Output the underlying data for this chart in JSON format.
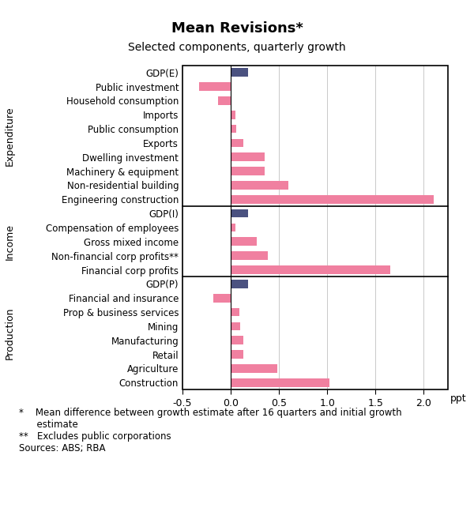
{
  "title": "Mean Revisions*",
  "subtitle": "Selected components, quarterly growth",
  "xlabel": "ppt",
  "xlim": [
    -0.5,
    2.25
  ],
  "xticks": [
    -0.5,
    0.0,
    0.5,
    1.0,
    1.5,
    2.0
  ],
  "xticklabels": [
    "-0.5",
    "0.0",
    "0.5",
    "1.0",
    "1.5",
    "2.0"
  ],
  "pink_color": "#F080A0",
  "blue_color": "#4B5280",
  "sections": [
    {
      "label": "Expenditure",
      "categories": [
        "Engineering construction",
        "Non-residential building",
        "Machinery & equipment",
        "Dwelling investment",
        "Exports",
        "Public consumption",
        "Imports",
        "Household consumption",
        "Public investment",
        "GDP(E)"
      ],
      "values": [
        2.1,
        0.6,
        0.35,
        0.35,
        0.13,
        0.06,
        0.05,
        -0.13,
        -0.33,
        0.18
      ],
      "colors": [
        "pink",
        "pink",
        "pink",
        "pink",
        "pink",
        "pink",
        "pink",
        "pink",
        "pink",
        "blue"
      ]
    },
    {
      "label": "Income",
      "categories": [
        "Financial corp profits",
        "Non-financial corp profits**",
        "Gross mixed income",
        "Compensation of employees",
        "GDP(I)"
      ],
      "values": [
        1.65,
        0.38,
        0.27,
        0.05,
        0.18
      ],
      "colors": [
        "pink",
        "pink",
        "pink",
        "pink",
        "blue"
      ]
    },
    {
      "label": "Production",
      "categories": [
        "Construction",
        "Agriculture",
        "Retail",
        "Manufacturing",
        "Mining",
        "Prop & business services",
        "Financial and insurance",
        "GDP(P)"
      ],
      "values": [
        1.02,
        0.48,
        0.13,
        0.13,
        0.1,
        0.09,
        -0.18,
        0.18
      ],
      "colors": [
        "pink",
        "pink",
        "pink",
        "pink",
        "pink",
        "pink",
        "pink",
        "blue"
      ]
    }
  ],
  "footnote_text": "*    Mean difference between growth estimate after 16 quarters and initial growth\n      estimate\n**   Excludes public corporations\nSources: ABS; RBA"
}
